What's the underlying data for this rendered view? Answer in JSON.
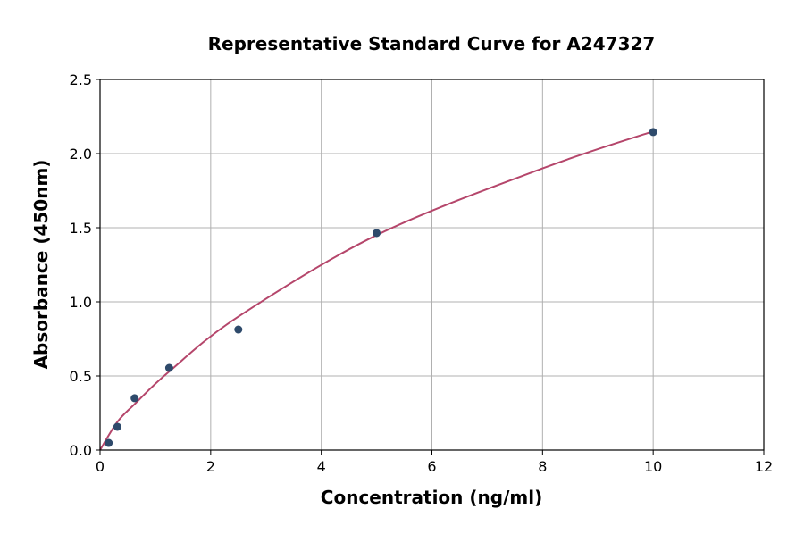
{
  "chart_data": {
    "type": "scatter",
    "title": "Representative Standard Curve for A247327",
    "xlabel": "Concentration (ng/ml)",
    "ylabel": "Absorbance (450nm)",
    "xlim": [
      0,
      12
    ],
    "ylim": [
      0,
      2.5
    ],
    "xticks": [
      "0",
      "2",
      "4",
      "6",
      "8",
      "10",
      "12"
    ],
    "yticks": [
      "0.0",
      "0.5",
      "1.0",
      "1.5",
      "2.0",
      "2.5"
    ],
    "grid": true,
    "points": {
      "x": [
        0.156,
        0.313,
        0.625,
        1.25,
        2.5,
        5,
        10
      ],
      "y": [
        0.048,
        0.157,
        0.35,
        0.554,
        0.813,
        1.464,
        2.145
      ]
    },
    "fit_curve": {
      "x": [
        0,
        0.313,
        0.625,
        1.25,
        2.5,
        5,
        8,
        10
      ],
      "y": [
        0,
        0.19,
        0.31,
        0.53,
        0.9,
        1.45,
        1.9,
        2.15
      ]
    },
    "colors": {
      "points": "#2e4a6b",
      "curve": "#b5466b",
      "grid": "#b0b0b0"
    }
  }
}
